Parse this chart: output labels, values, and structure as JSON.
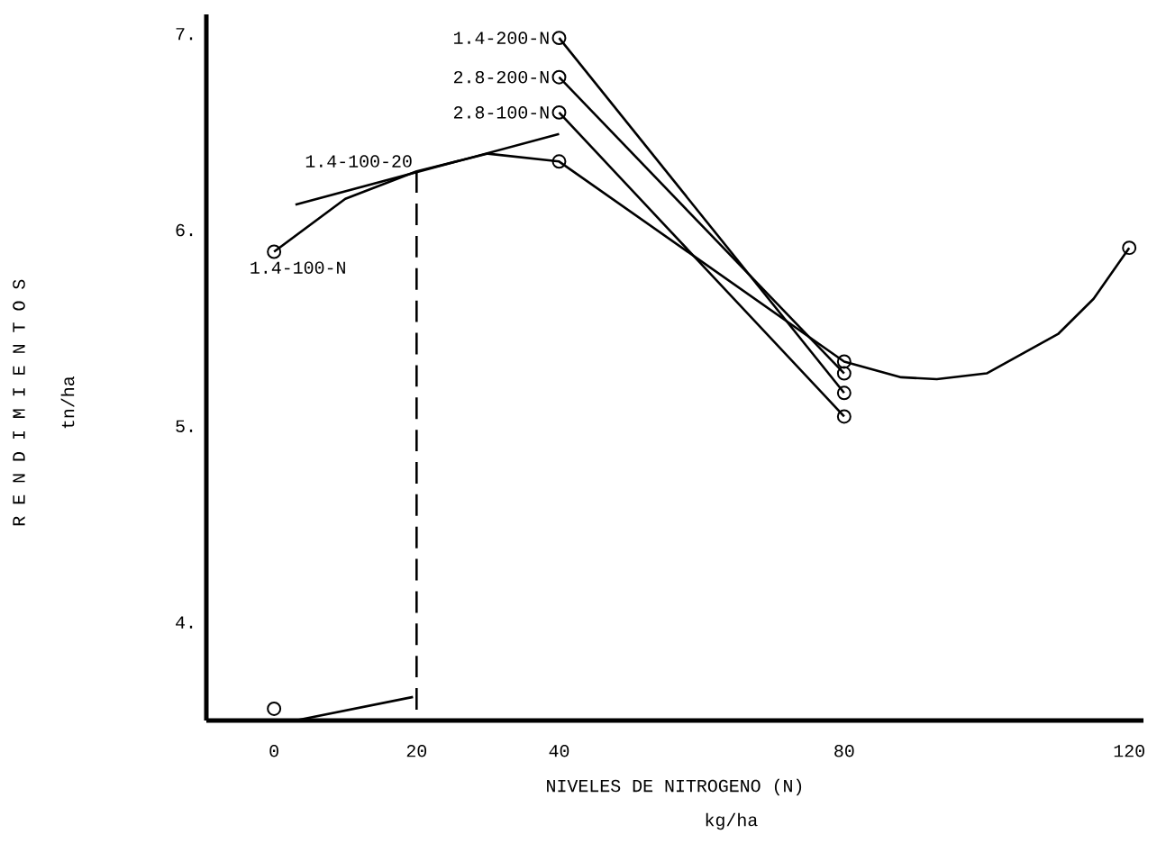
{
  "chart_data": {
    "type": "line",
    "xlabel": "NIVELES DE NITROGENO   (N)",
    "xlim": [
      -9.5,
      122
    ],
    "ylim": [
      3.5,
      7.1
    ],
    "xticks": [
      0,
      20,
      40,
      80,
      120
    ],
    "yticks": [
      {
        "value": 4,
        "label": "4."
      },
      {
        "value": 5,
        "label": "5."
      },
      {
        "value": 6,
        "label": "6."
      },
      {
        "value": 7,
        "label": "7."
      }
    ],
    "annotations": [
      "kg/ha",
      "R E N D I M I E N T O S",
      "tn/ha",
      {
        "text": "1.4-100-20",
        "x": 20,
        "y": 6.3
      }
    ],
    "series": [
      {
        "name": "1.4-200-N",
        "color": "#000000",
        "marker": "circle",
        "x": [
          40,
          80
        ],
        "values": [
          6.98,
          5.17
        ]
      },
      {
        "name": "2.8-200-N",
        "color": "#000000",
        "marker": "circle",
        "x": [
          40,
          80
        ],
        "values": [
          6.78,
          5.27
        ]
      },
      {
        "name": "2.8-100-N",
        "color": "#000000",
        "marker": "circle",
        "x": [
          40,
          80
        ],
        "values": [
          6.6,
          5.05
        ]
      },
      {
        "name": "1.4-100-N",
        "color": "#000000",
        "marker": "none",
        "x": [
          0,
          10,
          20,
          30,
          40,
          80,
          88,
          93,
          100,
          110,
          115,
          120
        ],
        "values": [
          5.89,
          6.16,
          6.3,
          6.39,
          6.35,
          5.33,
          5.25,
          5.24,
          5.27,
          5.47,
          5.65,
          5.91
        ]
      },
      {
        "type": "line",
        "color": "#000000",
        "marker": "none",
        "x": [
          3,
          40
        ],
        "values": [
          6.13,
          6.49
        ]
      },
      {
        "type": "line",
        "color": "#000000",
        "marker": "none",
        "x": [
          3,
          19.5
        ],
        "values": [
          3.5,
          3.62
        ]
      },
      {
        "type": "scatter",
        "color": "#000000",
        "marker": "circle",
        "x": [
          0,
          40,
          80,
          120,
          0
        ],
        "values": [
          5.89,
          6.35,
          5.33,
          5.91,
          3.56
        ]
      }
    ]
  }
}
